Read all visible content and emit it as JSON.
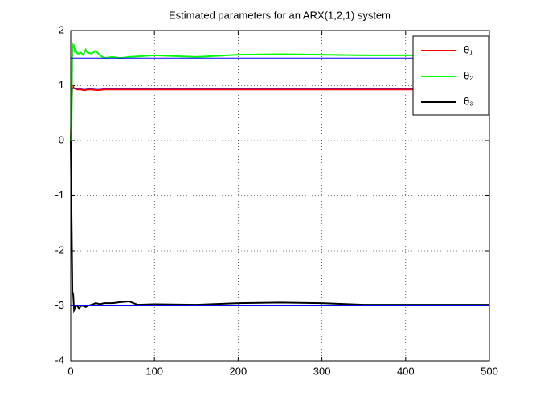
{
  "chart_data": {
    "type": "line",
    "title": "Estimated parameters for an ARX(1,2,1) system",
    "x": [
      0,
      1,
      2,
      3,
      4,
      5,
      6,
      8,
      10,
      12,
      15,
      18,
      20,
      25,
      30,
      35,
      40,
      50,
      60,
      70,
      80,
      100,
      150,
      200,
      250,
      300,
      350,
      400,
      450,
      500
    ],
    "series": [
      {
        "name": "θ₁",
        "color": "#ff0000",
        "values": [
          0,
          0.6,
          1.0,
          0.98,
          0.95,
          0.95,
          0.94,
          0.93,
          0.93,
          0.93,
          0.92,
          0.92,
          0.93,
          0.93,
          0.92,
          0.92,
          0.93,
          0.93,
          0.93,
          0.93,
          0.93,
          0.93,
          0.93,
          0.93,
          0.93,
          0.93,
          0.93,
          0.93,
          0.94,
          0.94
        ]
      },
      {
        "name": "θ₂",
        "color": "#00ff00",
        "values": [
          0,
          0.2,
          1.78,
          1.7,
          1.72,
          1.6,
          1.65,
          1.58,
          1.58,
          1.6,
          1.56,
          1.65,
          1.6,
          1.58,
          1.63,
          1.55,
          1.5,
          1.52,
          1.5,
          1.52,
          1.53,
          1.55,
          1.52,
          1.56,
          1.57,
          1.56,
          1.55,
          1.55,
          1.54,
          1.55
        ]
      },
      {
        "name": "θ₃",
        "color": "#000000",
        "values": [
          0,
          -1.35,
          -2.75,
          -2.8,
          -3.08,
          -3.05,
          -3.0,
          -3.0,
          -3.05,
          -3.0,
          -3.0,
          -3.02,
          -3.0,
          -2.98,
          -2.95,
          -2.97,
          -2.95,
          -2.95,
          -2.93,
          -2.92,
          -2.98,
          -2.97,
          -2.98,
          -2.95,
          -2.94,
          -2.95,
          -2.98,
          -2.98,
          -2.98,
          -2.98
        ]
      }
    ],
    "hlines": [
      {
        "value": 0.95,
        "color": "#0000ff"
      },
      {
        "value": 1.5,
        "color": "#0000ff"
      },
      {
        "value": -3,
        "color": "#0000ff"
      }
    ],
    "xlim": [
      0,
      500
    ],
    "xticks": [
      0,
      100,
      200,
      300,
      400,
      500
    ],
    "ylim": [
      -4,
      2
    ],
    "yticks": [
      -4,
      -3,
      -2,
      -1,
      0,
      1,
      2
    ],
    "grid": true,
    "legend": "top-right"
  }
}
